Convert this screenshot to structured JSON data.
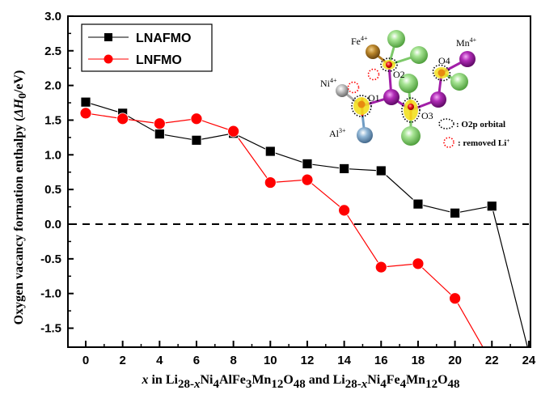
{
  "chart_data": {
    "type": "line",
    "title": "",
    "xlabel": {
      "parts": [
        {
          "t": "x",
          "style": "italic"
        },
        {
          "t": " in Li"
        },
        {
          "t": "28-",
          "style": "sub"
        },
        {
          "t": "x",
          "style": "sub-italic"
        },
        {
          "t": "Ni"
        },
        {
          "t": "4",
          "style": "sub"
        },
        {
          "t": "AlFe"
        },
        {
          "t": "3",
          "style": "sub"
        },
        {
          "t": "Mn"
        },
        {
          "t": "12",
          "style": "sub"
        },
        {
          "t": "O"
        },
        {
          "t": "48",
          "style": "sub"
        },
        {
          "t": " and Li"
        },
        {
          "t": "28-",
          "style": "sub"
        },
        {
          "t": "x",
          "style": "sub-italic"
        },
        {
          "t": "Ni"
        },
        {
          "t": "4",
          "style": "sub"
        },
        {
          "t": "Fe"
        },
        {
          "t": "4",
          "style": "sub"
        },
        {
          "t": "Mn"
        },
        {
          "t": "12",
          "style": "sub"
        },
        {
          "t": "O"
        },
        {
          "t": "48",
          "style": "sub"
        }
      ]
    },
    "ylabel": {
      "parts": [
        {
          "t": "Oxygen vacancy formation enthalpy ("
        },
        {
          "t": "ΔH",
          "style": "italic"
        },
        {
          "t": "0",
          "style": "sub"
        },
        {
          "t": "/eV)"
        }
      ]
    },
    "xlim": [
      -0.1,
      24.1
    ],
    "ylim": [
      -1.77,
      3.0
    ],
    "x_ticks": [
      0,
      2,
      4,
      6,
      8,
      10,
      12,
      14,
      16,
      18,
      20,
      22,
      24
    ],
    "x_tick_labels": [
      "0",
      "2",
      "4",
      "6",
      "8",
      "10",
      "12",
      "14",
      "16",
      "18",
      "20",
      "22",
      "24"
    ],
    "y_ticks": [
      -1.5,
      -1.0,
      -0.5,
      0.0,
      0.5,
      1.0,
      1.5,
      2.0,
      2.5,
      3.0
    ],
    "y_tick_labels": [
      "-1.5",
      "-1.0",
      "-0.5",
      "0.0",
      "0.5",
      "1.0",
      "1.5",
      "2.0",
      "2.5",
      "3.0"
    ],
    "reference_line": {
      "y": 0.0,
      "style": "dashed"
    },
    "grid": false,
    "legend_position": "top-left",
    "series": [
      {
        "name": "LNAFMO",
        "color": "#000000",
        "marker": "square",
        "x": [
          0,
          2,
          4,
          6,
          8,
          10,
          12,
          14,
          16,
          18,
          20,
          22,
          24
        ],
        "values": [
          1.76,
          1.6,
          1.3,
          1.21,
          1.31,
          1.05,
          0.87,
          0.8,
          0.77,
          0.29,
          0.16,
          0.26,
          -1.85
        ]
      },
      {
        "name": "LNFMO",
        "color": "#ff0000",
        "marker": "circle",
        "x": [
          0,
          2,
          4,
          6,
          8,
          10,
          12,
          14,
          16,
          18,
          20,
          22
        ],
        "values": [
          1.6,
          1.52,
          1.45,
          1.52,
          1.34,
          0.6,
          0.64,
          0.2,
          -0.62,
          -0.57,
          -1.07,
          -2.0
        ]
      }
    ],
    "inset": {
      "atom_labels": {
        "fe": {
          "base": "Fe",
          "sup": "4+"
        },
        "mn": {
          "base": "Mn",
          "sup": "4+"
        },
        "ni": {
          "base": "Ni",
          "sup": "4+"
        },
        "al": {
          "base": "Al",
          "sup": "3+"
        }
      },
      "oxygen_labels": [
        "O1",
        "O2",
        "O3",
        "O4"
      ],
      "key": [
        {
          "text": ": O2p orbital",
          "color": "#000000"
        },
        {
          "text": ": removed Li",
          "sup": "+",
          "color": "#ff0000"
        }
      ],
      "atom_colors": {
        "green": "#7dc96a",
        "purple": "#a21fa8",
        "fe": "#b07a22",
        "ni": "#a8a8a8",
        "al": "#6f9cc4",
        "oxygen": "#ee1111",
        "orbital": "#f2e020"
      }
    }
  }
}
